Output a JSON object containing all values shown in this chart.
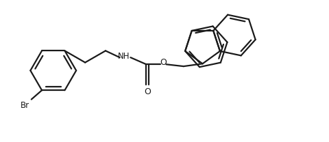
{
  "background_color": "#ffffff",
  "line_color": "#1a1a1a",
  "line_width": 1.6,
  "font_size": 8.5,
  "label_color": "#1a1a1a",
  "xlim": [
    0,
    10
  ],
  "ylim": [
    0,
    4.33
  ]
}
